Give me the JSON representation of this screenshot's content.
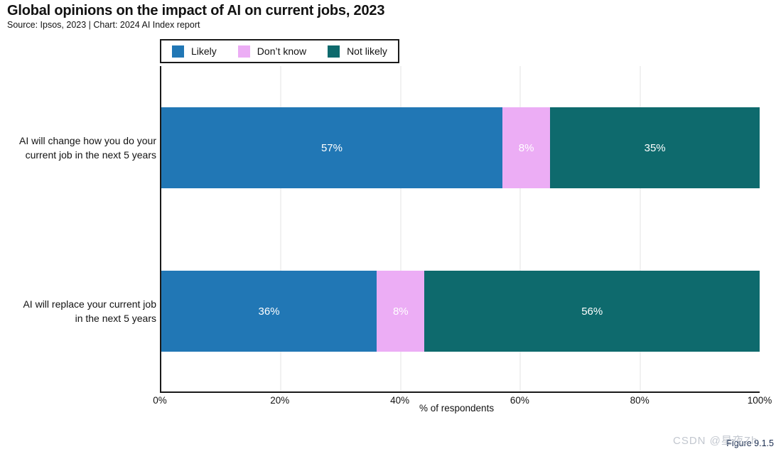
{
  "title": "Global opinions on the impact of AI on current jobs, 2023",
  "subtitle": "Source: Ipsos, 2023 | Chart: 2024 AI Index report",
  "legend": {
    "items": [
      {
        "label": "Likely",
        "color": "#2177B5"
      },
      {
        "label": "Don’t know",
        "color": "#ECADF5"
      },
      {
        "label": "Not likely",
        "color": "#0E6A6D"
      }
    ]
  },
  "chart_data": {
    "type": "bar",
    "orientation": "horizontal",
    "stacked": true,
    "title": "Global opinions on the impact of AI on current jobs, 2023",
    "categories": [
      "AI will change how you do your current job in the next 5 years",
      "AI will replace your current job in the next 5 years"
    ],
    "category_lines": [
      [
        "AI will change how you do your",
        "current job in the next 5 years"
      ],
      [
        "AI will replace your current job",
        "in the next 5 years"
      ]
    ],
    "series": [
      {
        "name": "Likely",
        "color": "#2177B5",
        "values": [
          57,
          36
        ]
      },
      {
        "name": "Don’t know",
        "color": "#ECADF5",
        "values": [
          8,
          8
        ]
      },
      {
        "name": "Not likely",
        "color": "#0E6A6D",
        "values": [
          35,
          56
        ]
      }
    ],
    "value_suffix": "%",
    "xlabel": "% of respondents",
    "xlim": [
      0,
      100
    ],
    "xticks": [
      "0%",
      "20%",
      "40%",
      "60%",
      "80%",
      "100%"
    ],
    "xtick_values": [
      0,
      20,
      40,
      60,
      80,
      100
    ],
    "grid": "vertical light-gray lines every 20%",
    "legend_position": "top-left above plot"
  },
  "footer": {
    "figure_label": "Figure 9.1.5",
    "watermark": "CSDN @星夜Zh"
  }
}
